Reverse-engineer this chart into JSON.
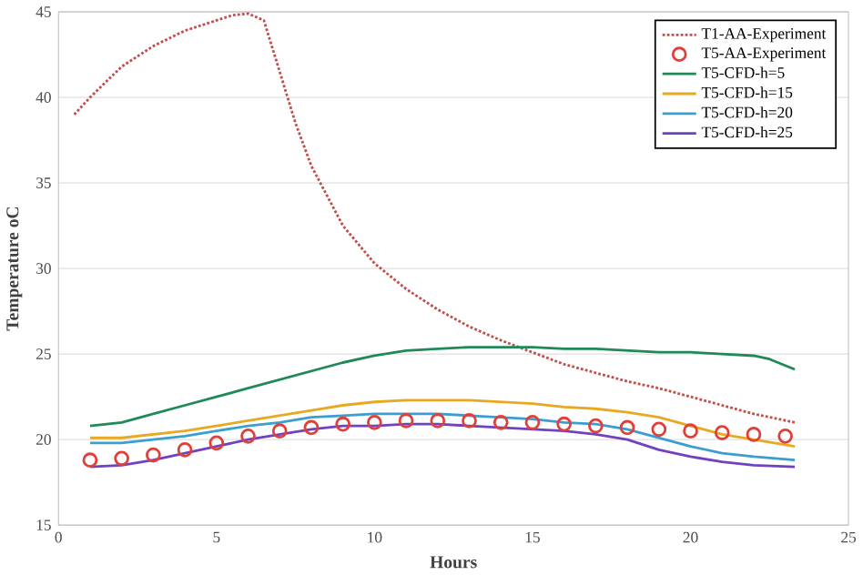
{
  "chart_data": {
    "type": "line",
    "xlabel": "Hours",
    "ylabel": "Temperature oC",
    "xlim": [
      0,
      25
    ],
    "ylim": [
      15,
      45
    ],
    "xticks": [
      0,
      5,
      10,
      15,
      20,
      25
    ],
    "yticks": [
      15,
      20,
      25,
      30,
      35,
      40,
      45
    ],
    "grid": "y",
    "legend": "top right",
    "series": [
      {
        "name": "T1-AA-Experiment",
        "color": "#c0504d",
        "line_style": "dotted",
        "x": [
          0.5,
          1,
          2,
          3,
          4,
          5,
          5.5,
          6,
          6.5,
          7,
          7.5,
          8,
          9,
          10,
          11,
          12,
          13,
          14,
          15,
          16,
          17,
          18,
          19,
          20,
          21,
          22,
          23.3
        ],
        "values": [
          39,
          40,
          41.8,
          43,
          43.9,
          44.5,
          44.8,
          44.9,
          44.5,
          41.5,
          38.5,
          36,
          32.5,
          30.3,
          28.8,
          27.6,
          26.6,
          25.8,
          25.1,
          24.4,
          23.9,
          23.4,
          23.0,
          22.5,
          22.0,
          21.5,
          21.0
        ]
      },
      {
        "name": "T5-AA-Experiment",
        "type": "scatter",
        "marker": "circle",
        "color": "#e0403a",
        "x": [
          1,
          2,
          3,
          4,
          5,
          6,
          7,
          8,
          9,
          10,
          11,
          12,
          13,
          14,
          15,
          16,
          17,
          18,
          19,
          20,
          21,
          22,
          23
        ],
        "values": [
          18.8,
          18.9,
          19.1,
          19.4,
          19.8,
          20.2,
          20.5,
          20.7,
          20.9,
          21.0,
          21.1,
          21.1,
          21.1,
          21.0,
          21.0,
          20.9,
          20.8,
          20.7,
          20.6,
          20.5,
          20.4,
          20.3,
          20.2
        ]
      },
      {
        "name": "T5-CFD-h=5",
        "color": "#1f8a55",
        "x": [
          1,
          2,
          3,
          4,
          5,
          6,
          7,
          8,
          9,
          10,
          11,
          12,
          13,
          14,
          15,
          16,
          17,
          18,
          19,
          20,
          21,
          22,
          22.5,
          23.3
        ],
        "values": [
          20.8,
          21.0,
          21.5,
          22.0,
          22.5,
          23.0,
          23.5,
          24.0,
          24.5,
          24.9,
          25.2,
          25.3,
          25.4,
          25.4,
          25.4,
          25.3,
          25.3,
          25.2,
          25.1,
          25.1,
          25.0,
          24.9,
          24.7,
          24.1
        ]
      },
      {
        "name": "T5-CFD-h=15",
        "color": "#e8a820",
        "x": [
          1,
          2,
          3,
          4,
          5,
          6,
          7,
          8,
          9,
          10,
          11,
          12,
          13,
          14,
          15,
          16,
          17,
          18,
          19,
          20,
          21,
          22,
          23.3
        ],
        "values": [
          20.1,
          20.1,
          20.3,
          20.5,
          20.8,
          21.1,
          21.4,
          21.7,
          22.0,
          22.2,
          22.3,
          22.3,
          22.3,
          22.2,
          22.1,
          21.9,
          21.8,
          21.6,
          21.3,
          20.8,
          20.3,
          20.0,
          19.6
        ]
      },
      {
        "name": "T5-CFD-h=20",
        "color": "#3a9fd0",
        "x": [
          1,
          2,
          3,
          4,
          5,
          6,
          7,
          8,
          9,
          10,
          11,
          12,
          13,
          14,
          15,
          16,
          17,
          18,
          19,
          20,
          21,
          22,
          23.3
        ],
        "values": [
          19.8,
          19.8,
          20.0,
          20.2,
          20.5,
          20.8,
          21.0,
          21.3,
          21.4,
          21.5,
          21.5,
          21.5,
          21.4,
          21.3,
          21.2,
          21.0,
          20.9,
          20.6,
          20.1,
          19.6,
          19.2,
          19.0,
          18.8
        ]
      },
      {
        "name": "T5-CFD-h=25",
        "color": "#7042c0",
        "x": [
          1,
          2,
          3,
          4,
          5,
          6,
          7,
          8,
          9,
          10,
          11,
          12,
          13,
          14,
          15,
          16,
          17,
          18,
          19,
          20,
          21,
          22,
          23.3
        ],
        "values": [
          18.4,
          18.5,
          18.8,
          19.2,
          19.6,
          20.0,
          20.3,
          20.6,
          20.8,
          20.8,
          20.9,
          20.9,
          20.8,
          20.7,
          20.6,
          20.5,
          20.3,
          20.0,
          19.4,
          19.0,
          18.7,
          18.5,
          18.4
        ]
      }
    ]
  }
}
